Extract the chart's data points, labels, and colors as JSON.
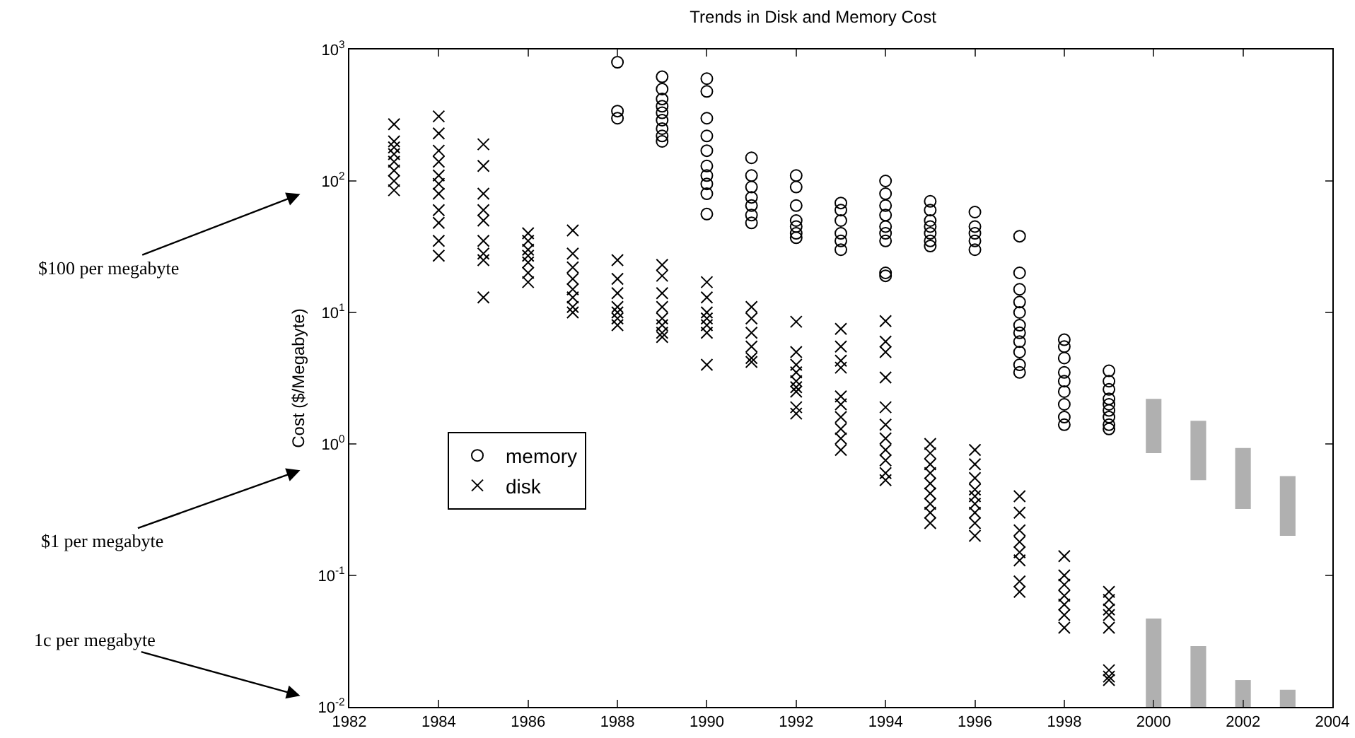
{
  "chart_data": {
    "type": "scatter",
    "title": "Trends in Disk and Memory Cost",
    "ylabel": "Cost ($/Megabyte)",
    "xlim": [
      1982,
      2004
    ],
    "xticks": [
      1982,
      1984,
      1986,
      1988,
      1990,
      1992,
      1994,
      1996,
      1998,
      2000,
      2002,
      2004
    ],
    "ylim": [
      0.01,
      1000
    ],
    "log": "y",
    "yticks": [
      {
        "value": 0.01,
        "label": "10$^{-2}$"
      },
      {
        "value": 0.1,
        "label": "10$^{-1}$"
      },
      {
        "value": 1,
        "label": "10$^{0}$"
      },
      {
        "value": 10,
        "label": "10$^{1}$"
      },
      {
        "value": 100,
        "label": "10$^{2}$"
      },
      {
        "value": 1000,
        "label": "10$^{3}$"
      }
    ],
    "grid": false,
    "legend": "bottom left",
    "annotations": [
      "$100 per megabyte",
      "$1 per megabyte",
      "1c per megabyte"
    ],
    "series": [
      {
        "name": "memory",
        "marker": "circle",
        "color": "#000000",
        "x": [
          1988,
          1988,
          1988,
          1989,
          1989,
          1989,
          1989,
          1989,
          1989,
          1989,
          1989,
          1989,
          1990,
          1990,
          1990,
          1990,
          1990,
          1990,
          1990,
          1990,
          1990,
          1990,
          1991,
          1991,
          1991,
          1991,
          1991,
          1991,
          1991,
          1992,
          1992,
          1992,
          1992,
          1992,
          1992,
          1992,
          1993,
          1993,
          1993,
          1993,
          1993,
          1993,
          1994,
          1994,
          1994,
          1994,
          1994,
          1994,
          1994,
          1994,
          1994,
          1995,
          1995,
          1995,
          1995,
          1995,
          1995,
          1995,
          1996,
          1996,
          1996,
          1996,
          1996,
          1997,
          1997,
          1997,
          1997,
          1997,
          1997,
          1997,
          1997,
          1997,
          1997,
          1997,
          1998,
          1998,
          1998,
          1998,
          1998,
          1998,
          1998,
          1998,
          1998,
          1999,
          1999,
          1999,
          1999,
          1999,
          1999,
          1999,
          1999,
          1999
        ],
        "values": [
          800,
          340,
          300,
          620,
          500,
          420,
          370,
          330,
          290,
          250,
          220,
          200,
          600,
          480,
          300,
          220,
          170,
          130,
          110,
          95,
          80,
          56,
          150,
          110,
          90,
          75,
          65,
          55,
          48,
          110,
          90,
          65,
          50,
          45,
          40,
          37,
          68,
          60,
          50,
          40,
          35,
          30,
          100,
          80,
          65,
          55,
          45,
          40,
          35,
          20,
          19,
          70,
          60,
          50,
          45,
          40,
          35,
          32,
          58,
          45,
          40,
          35,
          30,
          38,
          20,
          15,
          12,
          10,
          8,
          7,
          6,
          5,
          4,
          3.5,
          6.2,
          5.5,
          4.5,
          3.5,
          3,
          2.5,
          2,
          1.6,
          1.4,
          3.6,
          3,
          2.6,
          2.2,
          2,
          1.8,
          1.6,
          1.4,
          1.3
        ]
      },
      {
        "name": "disk",
        "marker": "cross",
        "color": "#000000",
        "x": [
          1983,
          1983,
          1983,
          1983,
          1983,
          1983,
          1983,
          1983,
          1984,
          1984,
          1984,
          1984,
          1984,
          1984,
          1984,
          1984,
          1984,
          1984,
          1984,
          1985,
          1985,
          1985,
          1985,
          1985,
          1985,
          1985,
          1985,
          1985,
          1986,
          1986,
          1986,
          1986,
          1986,
          1986,
          1986,
          1987,
          1987,
          1987,
          1987,
          1987,
          1987,
          1987,
          1987,
          1988,
          1988,
          1988,
          1988,
          1988,
          1988,
          1988,
          1989,
          1989,
          1989,
          1989,
          1989,
          1989,
          1989,
          1989,
          1990,
          1990,
          1990,
          1990,
          1990,
          1990,
          1990,
          1991,
          1991,
          1991,
          1991,
          1991,
          1991,
          1992,
          1992,
          1992,
          1992,
          1992,
          1992,
          1992,
          1992,
          1992,
          1993,
          1993,
          1993,
          1993,
          1993,
          1993,
          1993,
          1993,
          1993,
          1993,
          1994,
          1994,
          1994,
          1994,
          1994,
          1994,
          1994,
          1994,
          1994,
          1994,
          1994,
          1995,
          1995,
          1995,
          1995,
          1995,
          1995,
          1995,
          1995,
          1995,
          1996,
          1996,
          1996,
          1996,
          1996,
          1996,
          1996,
          1996,
          1996,
          1997,
          1997,
          1997,
          1997,
          1997,
          1997,
          1997,
          1997,
          1998,
          1998,
          1998,
          1998,
          1998,
          1998,
          1998,
          1999,
          1999,
          1999,
          1999,
          1999,
          1999,
          1999,
          1999
        ],
        "values": [
          270,
          200,
          180,
          160,
          140,
          120,
          100,
          85,
          310,
          230,
          170,
          140,
          110,
          95,
          80,
          60,
          48,
          35,
          27,
          190,
          130,
          80,
          60,
          50,
          35,
          28,
          25,
          13,
          40,
          35,
          30,
          27,
          24,
          20,
          17,
          42,
          28,
          22,
          18,
          15,
          13,
          11,
          10,
          25,
          18,
          14,
          11,
          10,
          9,
          8,
          23,
          19,
          14,
          11,
          9,
          8,
          7,
          6.5,
          17,
          13,
          10,
          9,
          8,
          7,
          4,
          11,
          9,
          7,
          5.5,
          4.5,
          4.2,
          8.5,
          5,
          4,
          3.5,
          3,
          2.7,
          2.5,
          1.9,
          1.7,
          7.5,
          5.5,
          4.3,
          3.8,
          2.3,
          2,
          1.6,
          1.3,
          1.1,
          0.9,
          8.6,
          6,
          5,
          3.2,
          1.9,
          1.4,
          1.1,
          0.9,
          0.75,
          0.6,
          0.53,
          1,
          0.85,
          0.7,
          0.6,
          0.5,
          0.42,
          0.35,
          0.3,
          0.25,
          0.9,
          0.7,
          0.55,
          0.45,
          0.4,
          0.35,
          0.3,
          0.25,
          0.2,
          0.4,
          0.3,
          0.22,
          0.18,
          0.15,
          0.13,
          0.09,
          0.075,
          0.14,
          0.1,
          0.085,
          0.07,
          0.06,
          0.05,
          0.04,
          0.075,
          0.065,
          0.055,
          0.05,
          0.04,
          0.019,
          0.017,
          0.016
        ]
      },
      {
        "type": "bar",
        "color": "#b0b0b0",
        "x": [
          2000,
          2001,
          2002,
          2003
        ],
        "base": [
          0.85,
          0.53,
          0.32,
          0.2
        ],
        "values": [
          1.35,
          0.97,
          0.61,
          0.37
        ]
      },
      {
        "type": "bar",
        "color": "#b0b0b0",
        "x": [
          2000,
          2001,
          2002,
          2003
        ],
        "base": [
          0.01,
          0.01,
          0.01,
          0.01
        ],
        "values": [
          0.037,
          0.019,
          0.006,
          0.0035
        ]
      }
    ]
  }
}
